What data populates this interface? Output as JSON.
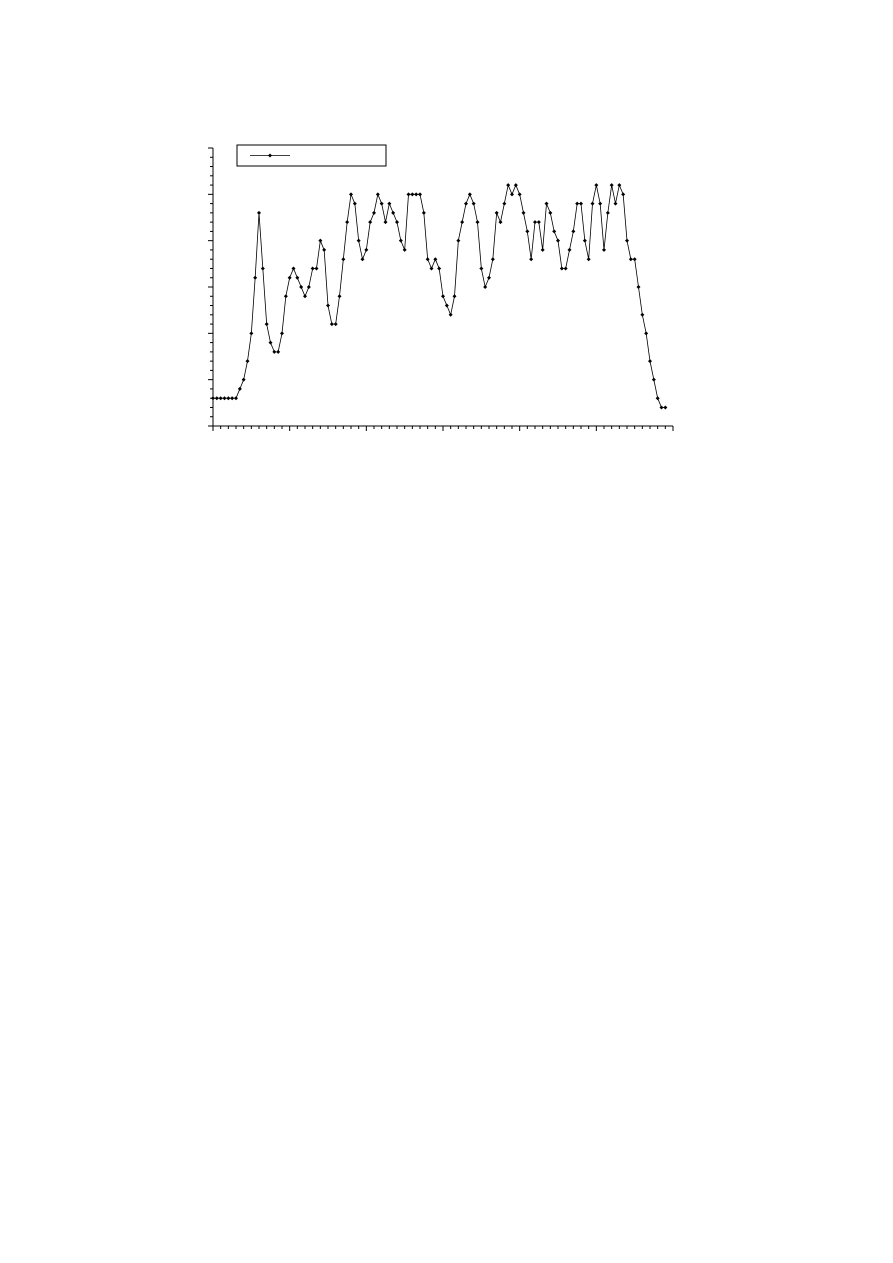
{
  "chart_data": {
    "type": "line",
    "x": [
      0,
      1,
      2,
      3,
      4,
      5,
      6,
      7,
      8,
      9,
      10,
      11,
      12,
      13,
      14,
      15,
      16,
      17,
      18,
      19,
      20,
      21,
      22,
      23,
      24,
      25,
      26,
      27,
      28,
      29,
      30,
      31,
      32,
      33,
      34,
      35,
      36,
      37,
      38,
      39,
      40,
      41,
      42,
      43,
      44,
      45,
      46,
      47,
      48,
      49,
      50,
      51,
      52,
      53,
      54,
      55,
      56,
      57,
      58,
      59,
      60,
      61,
      62,
      63,
      64,
      65,
      66,
      67,
      68,
      69,
      70,
      71,
      72,
      73,
      74,
      75,
      76,
      77,
      78,
      79,
      80,
      81,
      82,
      83,
      84,
      85,
      86,
      87,
      88,
      89,
      90,
      91,
      92,
      93,
      94,
      95,
      96,
      97,
      98,
      99,
      100,
      101,
      102,
      103,
      104,
      105,
      106,
      107,
      108,
      109,
      110,
      111,
      112,
      113,
      114,
      115,
      116,
      117,
      118
    ],
    "series": [
      {
        "color": "#000000",
        "values": [
          3,
          3,
          3,
          3,
          3,
          3,
          3,
          4,
          5,
          7,
          10,
          16,
          23,
          17,
          11,
          9,
          8,
          8,
          10,
          14,
          16,
          17,
          16,
          15,
          14,
          15,
          17,
          17,
          20,
          19,
          13,
          11,
          11,
          14,
          18,
          22,
          25,
          24,
          20,
          18,
          19,
          22,
          23,
          25,
          24,
          22,
          24,
          23,
          22,
          20,
          19,
          25,
          25,
          25,
          25,
          23,
          18,
          17,
          18,
          17,
          14,
          13,
          12,
          14,
          20,
          22,
          24,
          25,
          24,
          22,
          17,
          15,
          16,
          18,
          23,
          22,
          24,
          26,
          25,
          26,
          25,
          23,
          21,
          18,
          22,
          22,
          19,
          24,
          23,
          21,
          20,
          17,
          17,
          19,
          21,
          24,
          24,
          20,
          18,
          24,
          26,
          24,
          19,
          23,
          26,
          24,
          26,
          25,
          20,
          18,
          18,
          15,
          12,
          10,
          7,
          5,
          3,
          2,
          2
        ]
      }
    ],
    "xlim": [
      0,
      120
    ],
    "xticks": [
      0,
      20,
      40,
      60,
      80,
      100,
      120
    ],
    "xminorticks": [
      2,
      4,
      6,
      8,
      10,
      12,
      14,
      16,
      18,
      22,
      24,
      26,
      28,
      30,
      32,
      34,
      36,
      38,
      42,
      44,
      46,
      48,
      50,
      52,
      54,
      56,
      58,
      62,
      64,
      66,
      68,
      70,
      72,
      74,
      76,
      78,
      82,
      84,
      86,
      88,
      90,
      92,
      94,
      96,
      98,
      102,
      104,
      106,
      108,
      110,
      112,
      114,
      116,
      118
    ],
    "ylim": [
      0,
      30
    ],
    "yticks": [
      0,
      5,
      10,
      15,
      20,
      25,
      30
    ],
    "yminorticks": [
      1,
      2,
      3,
      4,
      6,
      7,
      8,
      9,
      11,
      12,
      13,
      14,
      16,
      17,
      18,
      19,
      21,
      22,
      23,
      24,
      26,
      27,
      28,
      29
    ],
    "legend": "top-left"
  }
}
